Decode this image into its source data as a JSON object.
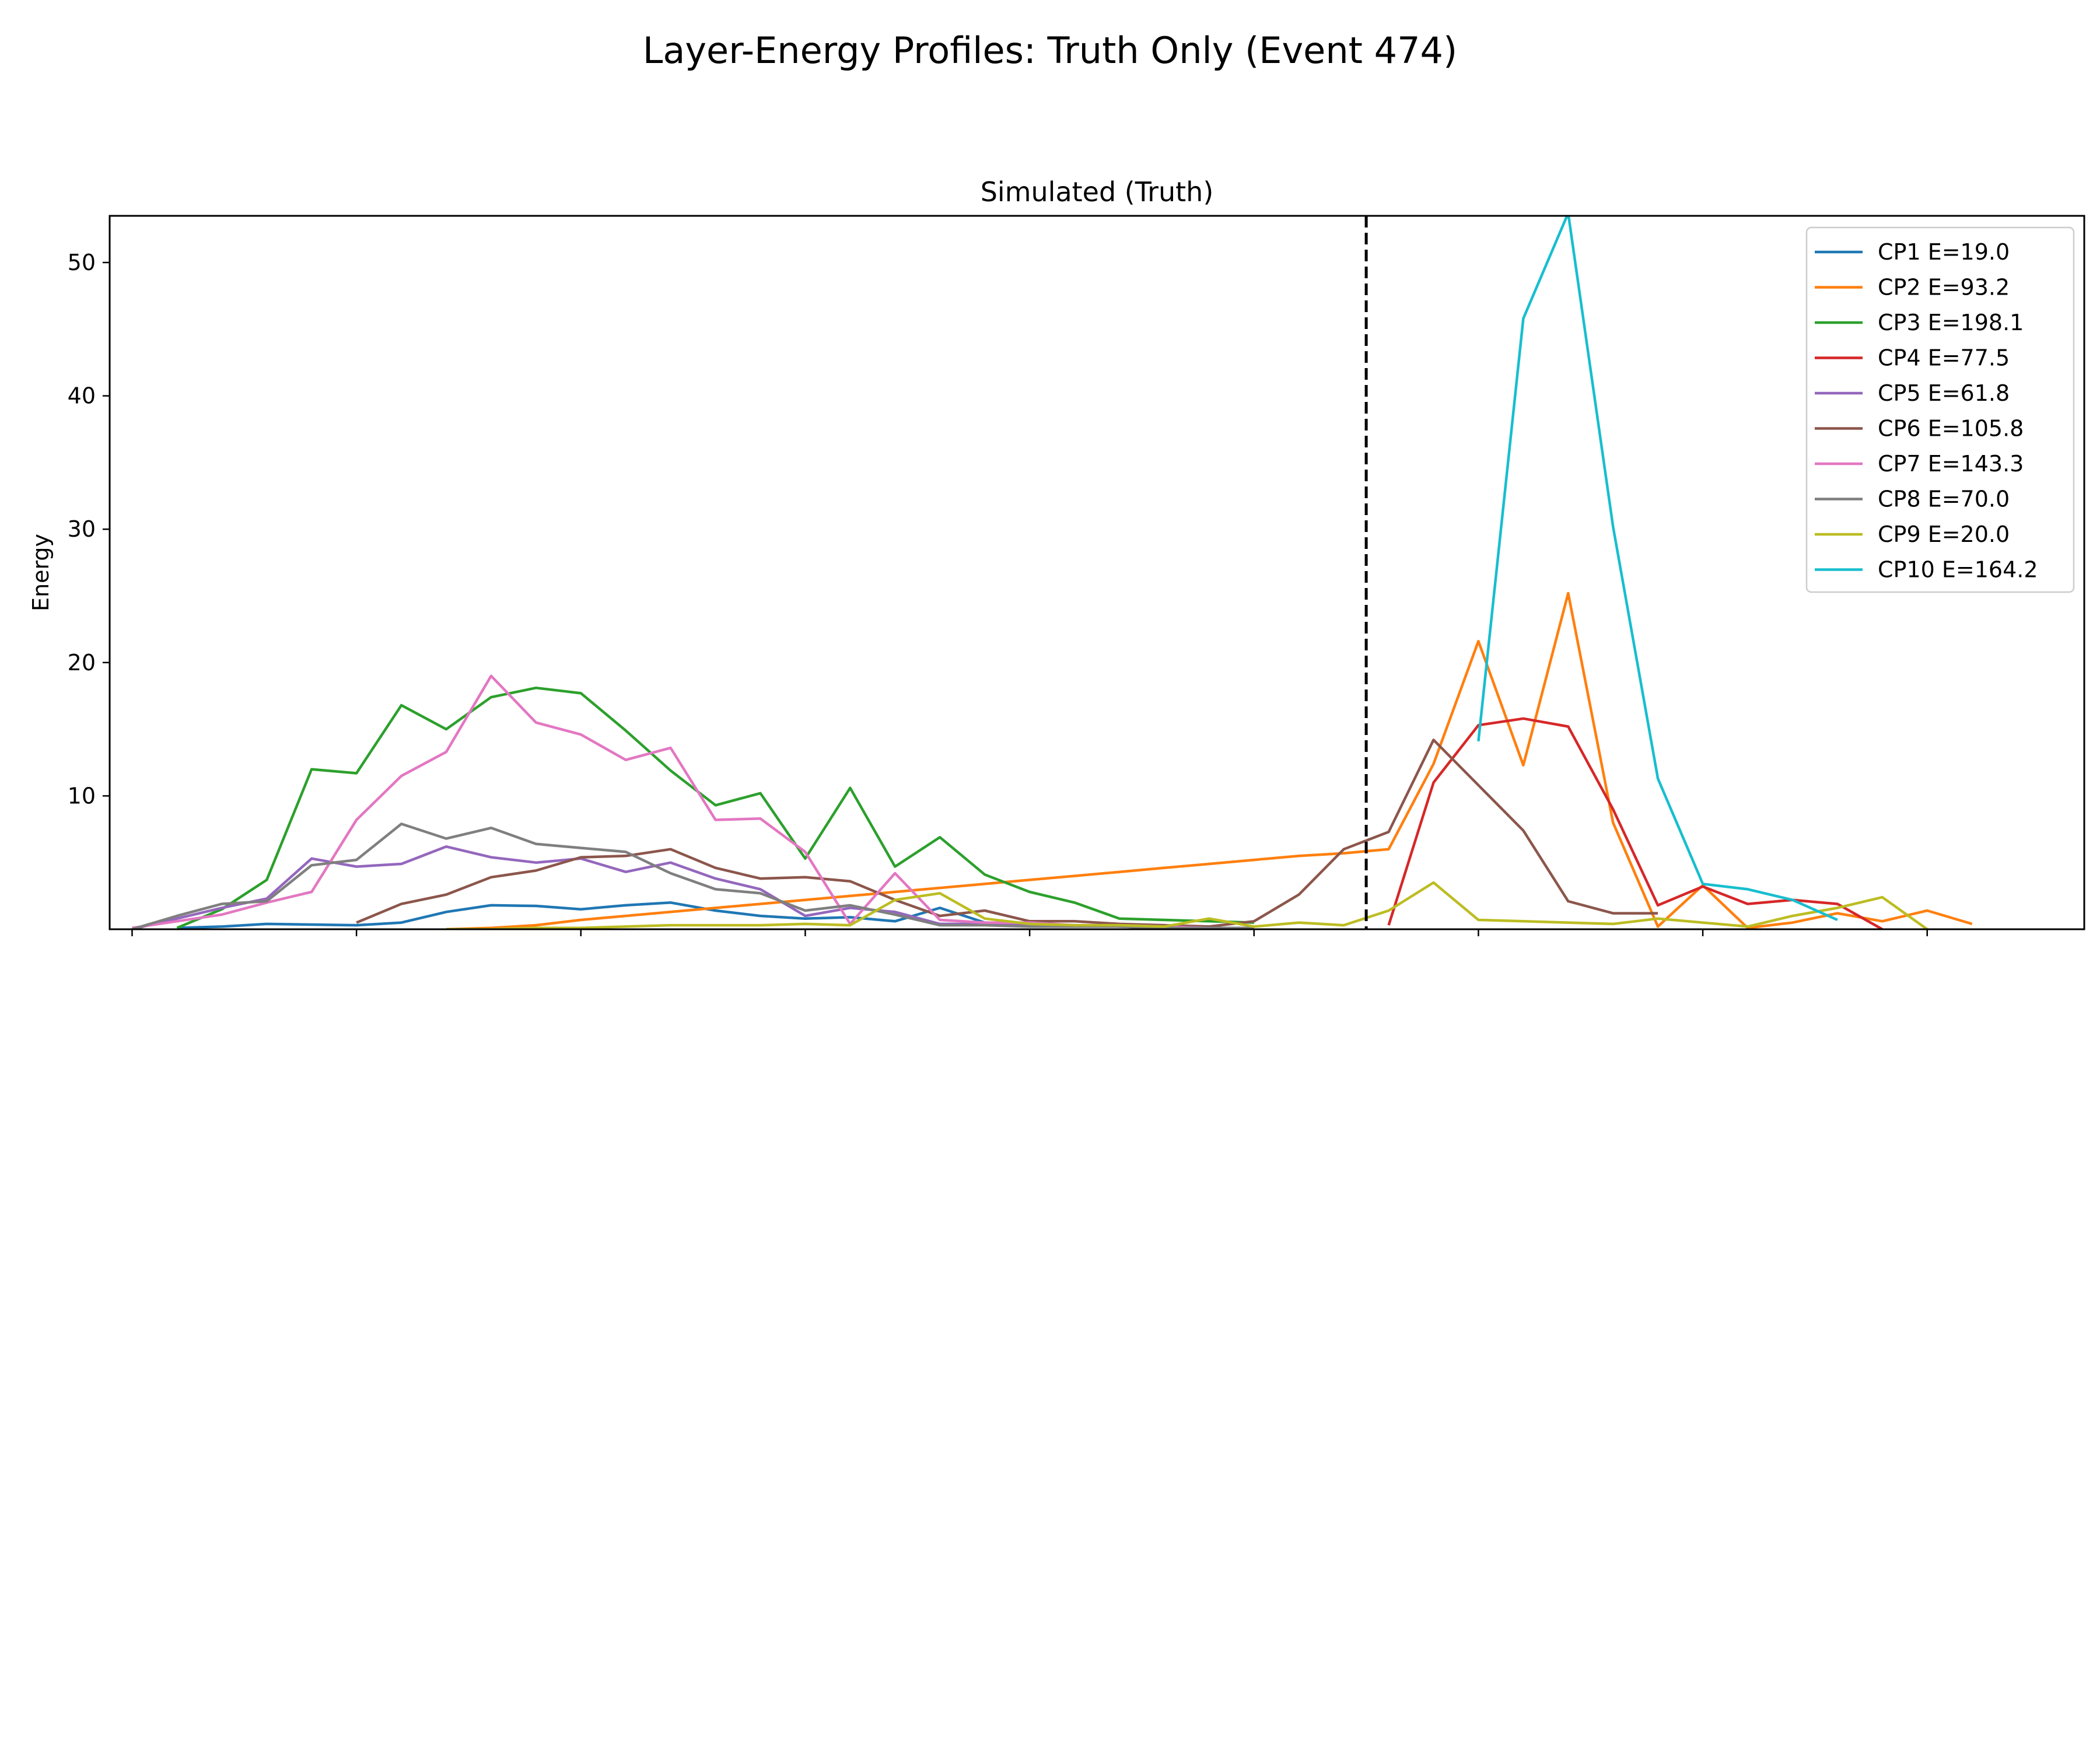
{
  "figure_title": "Layer-Energy Profiles: Truth Only (Event 474)",
  "chart_data": {
    "type": "line",
    "title": "Simulated (Truth)",
    "xlabel": "",
    "ylabel": "Energy",
    "x_range": [
      -0.5,
      43.5
    ],
    "ylim": [
      0,
      53.5
    ],
    "yticks": [
      10,
      20,
      30,
      40,
      50
    ],
    "xticks": [
      0,
      5,
      10,
      15,
      20,
      25,
      30,
      35,
      40
    ],
    "xtick_labels_visible": false,
    "grid": false,
    "legend_position": "upper right",
    "reference_lines": [
      {
        "axis": "x",
        "value": 27.5,
        "style": "dashed",
        "color": "#000000"
      }
    ],
    "series": [
      {
        "name": "CP1 E=19.0",
        "color": "#1f77b4",
        "x": [
          1,
          2,
          3,
          4,
          5,
          6,
          7,
          8,
          9,
          10,
          11,
          12,
          13,
          14,
          15,
          16,
          17,
          18,
          19,
          20,
          21,
          22,
          23,
          24,
          25
        ],
        "y": [
          0.1,
          0.2,
          0.4,
          0.35,
          0.3,
          0.5,
          1.3,
          1.8,
          1.75,
          1.5,
          1.8,
          2.0,
          1.4,
          1.0,
          0.8,
          0.9,
          0.6,
          1.6,
          0.5,
          0.3,
          0.3,
          0.2,
          0.1,
          0.1,
          0.05
        ]
      },
      {
        "name": "CP2 E=93.2",
        "color": "#ff7f0e",
        "x": [
          7,
          8,
          9,
          10,
          11,
          12,
          13,
          14,
          15,
          16,
          17,
          18,
          19,
          20,
          21,
          22,
          23,
          24,
          25,
          26,
          27,
          28,
          29,
          30,
          31,
          32,
          33,
          34,
          35,
          36,
          37,
          38,
          39,
          40,
          41
        ],
        "y": [
          0.0,
          0.1,
          0.3,
          0.7,
          1.0,
          1.3,
          1.6,
          1.9,
          2.2,
          2.5,
          2.8,
          3.1,
          3.4,
          3.7,
          4.0,
          4.3,
          4.6,
          4.9,
          5.2,
          5.5,
          5.7,
          6.0,
          12.4,
          21.6,
          12.3,
          25.2,
          8.0,
          0.2,
          3.3,
          0.1,
          0.5,
          1.2,
          0.6,
          1.4,
          0.4
        ]
      },
      {
        "name": "CP3 E=198.1",
        "color": "#2ca02c",
        "x": [
          1,
          2,
          3,
          4,
          5,
          6,
          7,
          8,
          9,
          10,
          11,
          12,
          13,
          14,
          15,
          16,
          17,
          18,
          19,
          20,
          21,
          22,
          23,
          24,
          25
        ],
        "y": [
          0.1,
          1.5,
          3.7,
          12.0,
          11.7,
          16.8,
          15.0,
          17.4,
          18.1,
          17.7,
          14.9,
          11.9,
          9.3,
          10.2,
          5.3,
          10.6,
          4.7,
          6.9,
          4.1,
          2.8,
          2.0,
          0.8,
          0.7,
          0.6,
          0.5
        ]
      },
      {
        "name": "CP4 E=77.5",
        "color": "#d62728",
        "x": [
          28,
          29,
          30,
          31,
          32,
          33,
          34,
          35,
          36,
          37,
          38,
          39
        ],
        "y": [
          0.3,
          11.0,
          15.3,
          15.8,
          15.2,
          9.0,
          1.8,
          3.2,
          1.9,
          2.2,
          1.9,
          0.0
        ]
      },
      {
        "name": "CP5 E=61.8",
        "color": "#9467bd",
        "x": [
          0,
          1,
          2,
          3,
          4,
          5,
          6,
          7,
          8,
          9,
          10,
          11,
          12,
          13,
          14,
          15,
          16,
          17,
          18,
          19,
          20,
          21,
          22,
          23,
          24,
          25
        ],
        "y": [
          0.0,
          0.8,
          1.6,
          2.3,
          5.3,
          4.7,
          4.9,
          6.2,
          5.4,
          5.0,
          5.3,
          4.3,
          5.0,
          3.8,
          3.0,
          1.0,
          1.6,
          1.3,
          0.4,
          0.4,
          0.3,
          0.3,
          0.2,
          0.2,
          0.1,
          0.0
        ]
      },
      {
        "name": "CP6 E=105.8",
        "color": "#8c564b",
        "x": [
          5,
          6,
          7,
          8,
          9,
          10,
          11,
          12,
          13,
          14,
          15,
          16,
          17,
          18,
          19,
          20,
          21,
          22,
          23,
          24,
          25,
          26,
          27,
          28,
          29,
          30,
          31,
          32,
          33,
          34
        ],
        "y": [
          0.5,
          1.9,
          2.6,
          3.9,
          4.4,
          5.4,
          5.5,
          6.0,
          4.6,
          3.8,
          3.9,
          3.6,
          2.2,
          1.0,
          1.4,
          0.6,
          0.6,
          0.4,
          0.3,
          0.2,
          0.6,
          2.6,
          6.0,
          7.3,
          14.2,
          10.8,
          7.4,
          2.1,
          1.2,
          1.2
        ]
      },
      {
        "name": "CP7 E=143.3",
        "color": "#e377c2",
        "x": [
          0,
          1,
          2,
          3,
          4,
          5,
          6,
          7,
          8,
          9,
          10,
          11,
          12,
          13,
          14,
          15,
          16,
          17,
          18,
          19,
          20,
          21,
          22,
          23,
          24
        ],
        "y": [
          0.1,
          0.6,
          1.1,
          2.0,
          2.8,
          8.2,
          11.5,
          13.3,
          19.0,
          15.5,
          14.6,
          12.7,
          13.6,
          8.2,
          8.3,
          5.8,
          0.4,
          4.2,
          0.7,
          0.5,
          0.5,
          0.3,
          0.3,
          0.2,
          0.1
        ]
      },
      {
        "name": "CP8 E=70.0",
        "color": "#7f7f7f",
        "x": [
          0,
          1,
          2,
          3,
          4,
          5,
          6,
          7,
          8,
          9,
          10,
          11,
          12,
          13,
          14,
          15,
          16,
          17,
          18,
          19,
          20,
          21,
          22,
          23,
          24,
          25
        ],
        "y": [
          0.0,
          1.0,
          1.9,
          2.1,
          4.8,
          5.2,
          7.9,
          6.8,
          7.6,
          6.4,
          6.1,
          5.8,
          4.2,
          3.0,
          2.7,
          1.4,
          1.8,
          1.1,
          0.3,
          0.3,
          0.2,
          0.2,
          0.2,
          0.1,
          0.1,
          0.1
        ]
      },
      {
        "name": "CP9 E=20.0",
        "color": "#bcbd22",
        "x": [
          7,
          8,
          9,
          10,
          11,
          12,
          13,
          14,
          15,
          16,
          17,
          18,
          19,
          20,
          21,
          22,
          23,
          24,
          25,
          26,
          27,
          28,
          29,
          30,
          31,
          32,
          33,
          34,
          35,
          36,
          37,
          38,
          39,
          40
        ],
        "y": [
          0.0,
          0.0,
          0.1,
          0.1,
          0.2,
          0.3,
          0.3,
          0.3,
          0.4,
          0.3,
          2.2,
          2.7,
          0.8,
          0.4,
          0.3,
          0.3,
          0.2,
          0.8,
          0.2,
          0.5,
          0.3,
          1.4,
          3.5,
          0.7,
          0.6,
          0.5,
          0.4,
          0.8,
          0.5,
          0.2,
          1.0,
          1.6,
          2.4,
          0.0
        ]
      },
      {
        "name": "CP10 E=164.2",
        "color": "#17becf",
        "x": [
          30,
          31,
          32,
          33,
          34,
          35,
          36,
          37,
          38
        ],
        "y": [
          14.1,
          45.8,
          53.7,
          30.2,
          11.3,
          3.4,
          3.0,
          2.2,
          0.7
        ]
      }
    ]
  }
}
